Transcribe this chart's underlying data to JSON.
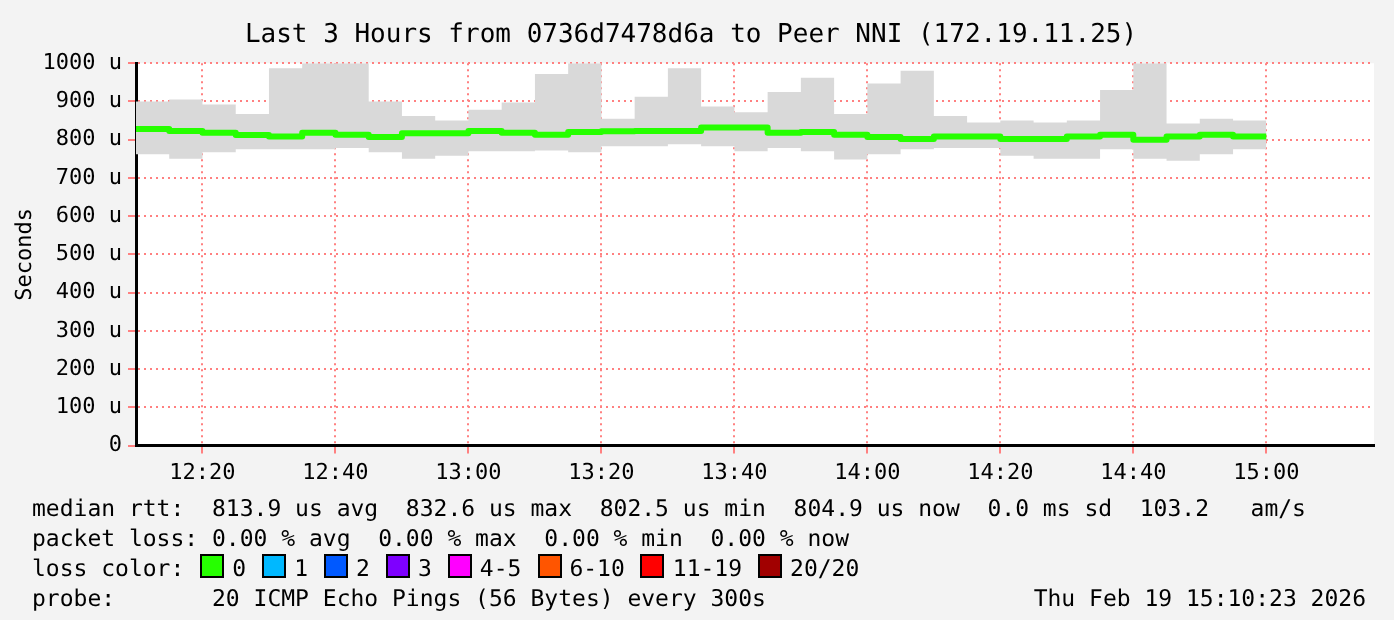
{
  "chart_data": {
    "type": "step",
    "title": "Last 3 Hours from 0736d7478d6a to Peer NNI (172.19.11.25)",
    "ylabel": "Seconds",
    "legend_title": "loss color:",
    "x": [
      12.1667,
      12.25,
      12.3333,
      12.4167,
      12.5,
      12.5833,
      12.6667,
      12.75,
      12.8333,
      12.9167,
      13,
      13.0833,
      13.1667,
      13.25,
      13.3333,
      13.4167,
      13.5,
      13.5833,
      13.6667,
      13.75,
      13.8333,
      13.9167,
      14,
      14.0833,
      14.1667,
      14.25,
      14.3333,
      14.4167,
      14.5,
      14.5833,
      14.6667,
      14.75,
      14.8333,
      14.9167,
      15
    ],
    "series": [
      {
        "name": "0",
        "color": "#26ff00",
        "values": [
          820,
          828,
          823,
          818,
          812,
          808,
          818,
          813,
          807,
          817,
          817,
          823,
          818,
          813,
          820,
          822,
          823,
          823,
          832,
          832,
          818,
          820,
          813,
          807,
          802,
          808,
          808,
          802,
          802,
          808,
          813,
          800,
          808,
          813,
          808
        ],
        "lower": [
          758,
          762,
          750,
          767,
          775,
          775,
          775,
          778,
          767,
          750,
          758,
          770,
          770,
          772,
          767,
          783,
          783,
          788,
          783,
          770,
          778,
          770,
          748,
          762,
          775,
          778,
          778,
          758,
          750,
          750,
          775,
          750,
          745,
          762,
          775
        ],
        "upper": [
          872,
          900,
          905,
          892,
          867,
          987,
          1000,
          1000,
          900,
          862,
          850,
          878,
          897,
          972,
          1000,
          855,
          912,
          987,
          887,
          872,
          925,
          962,
          867,
          947,
          980,
          862,
          845,
          850,
          845,
          850,
          930,
          1000,
          842,
          855,
          850
        ]
      },
      {
        "name": "1",
        "color": "#00b8ff",
        "values": [
          null,
          null,
          null,
          null,
          null,
          null,
          null,
          null,
          null,
          null,
          null,
          null,
          null,
          null,
          null,
          null,
          null,
          null,
          null,
          null,
          null,
          null,
          null,
          null,
          null,
          null,
          null,
          null,
          null,
          null,
          null,
          null,
          null,
          null,
          null
        ]
      },
      {
        "name": "2",
        "color": "#0059ff",
        "values": [
          null,
          null,
          null,
          null,
          null,
          null,
          null,
          null,
          null,
          null,
          null,
          null,
          null,
          null,
          null,
          null,
          null,
          null,
          null,
          null,
          null,
          null,
          null,
          null,
          null,
          null,
          null,
          null,
          null,
          null,
          null,
          null,
          null,
          null,
          null
        ]
      },
      {
        "name": "3",
        "color": "#7e00ff",
        "values": [
          null,
          null,
          null,
          null,
          null,
          null,
          null,
          null,
          null,
          null,
          null,
          null,
          null,
          null,
          null,
          null,
          null,
          null,
          null,
          null,
          null,
          null,
          null,
          null,
          null,
          null,
          null,
          null,
          null,
          null,
          null,
          null,
          null,
          null,
          null
        ]
      },
      {
        "name": "4-5",
        "color": "#ff00ff",
        "values": [
          null,
          null,
          null,
          null,
          null,
          null,
          null,
          null,
          null,
          null,
          null,
          null,
          null,
          null,
          null,
          null,
          null,
          null,
          null,
          null,
          null,
          null,
          null,
          null,
          null,
          null,
          null,
          null,
          null,
          null,
          null,
          null,
          null,
          null,
          null
        ]
      },
      {
        "name": "6-10",
        "color": "#ff5500",
        "values": [
          null,
          null,
          null,
          null,
          null,
          null,
          null,
          null,
          null,
          null,
          null,
          null,
          null,
          null,
          null,
          null,
          null,
          null,
          null,
          null,
          null,
          null,
          null,
          null,
          null,
          null,
          null,
          null,
          null,
          null,
          null,
          null,
          null,
          null,
          null
        ]
      },
      {
        "name": "11-19",
        "color": "#ff0000",
        "values": [
          null,
          null,
          null,
          null,
          null,
          null,
          null,
          null,
          null,
          null,
          null,
          null,
          null,
          null,
          null,
          null,
          null,
          null,
          null,
          null,
          null,
          null,
          null,
          null,
          null,
          null,
          null,
          null,
          null,
          null,
          null,
          null,
          null,
          null,
          null
        ]
      },
      {
        "name": "20/20",
        "color": "#a10000",
        "values": [
          null,
          null,
          null,
          null,
          null,
          null,
          null,
          null,
          null,
          null,
          null,
          null,
          null,
          null,
          null,
          null,
          null,
          null,
          null,
          null,
          null,
          null,
          null,
          null,
          null,
          null,
          null,
          null,
          null,
          null,
          null,
          null,
          null,
          null,
          null
        ]
      }
    ],
    "xlim": [
      12.1667,
      15.27
    ],
    "xticks": [
      {
        "value": 12.3333,
        "label": "12:20"
      },
      {
        "value": 12.6667,
        "label": "12:40"
      },
      {
        "value": 13,
        "label": "13:00"
      },
      {
        "value": 13.3333,
        "label": "13:20"
      },
      {
        "value": 13.6667,
        "label": "13:40"
      },
      {
        "value": 14,
        "label": "14:00"
      },
      {
        "value": 14.3333,
        "label": "14:20"
      },
      {
        "value": 14.6667,
        "label": "14:40"
      },
      {
        "value": 15,
        "label": "15:00"
      }
    ],
    "ylim": [
      0,
      1000
    ],
    "yticks": [
      0,
      {
        "value": 100,
        "label": "100 u"
      },
      {
        "value": 200,
        "label": "200 u"
      },
      {
        "value": 300,
        "label": "300 u"
      },
      {
        "value": 400,
        "label": "400 u"
      },
      {
        "value": 500,
        "label": "500 u"
      },
      {
        "value": 600,
        "label": "600 u"
      },
      {
        "value": 700,
        "label": "700 u"
      },
      {
        "value": 800,
        "label": "800 u"
      },
      {
        "value": 900,
        "label": "900 u"
      },
      {
        "value": 1000,
        "label": "1000 u"
      }
    ],
    "grid": true,
    "legend": "bottom",
    "marker": "none",
    "line_style": "solid",
    "annotations": [
      "median rtt:  813.9 us avg  832.6 us max  802.5 us min  804.9 us now  0.0 ms sd  103.2   am/s",
      "packet loss: 0.00 % avg  0.00 % max  0.00 % min  0.00 % now",
      "probe:       20 ICMP Echo Pings (56 Bytes) every 300s",
      "Thu Feb 19 15:10:23 2026"
    ]
  }
}
